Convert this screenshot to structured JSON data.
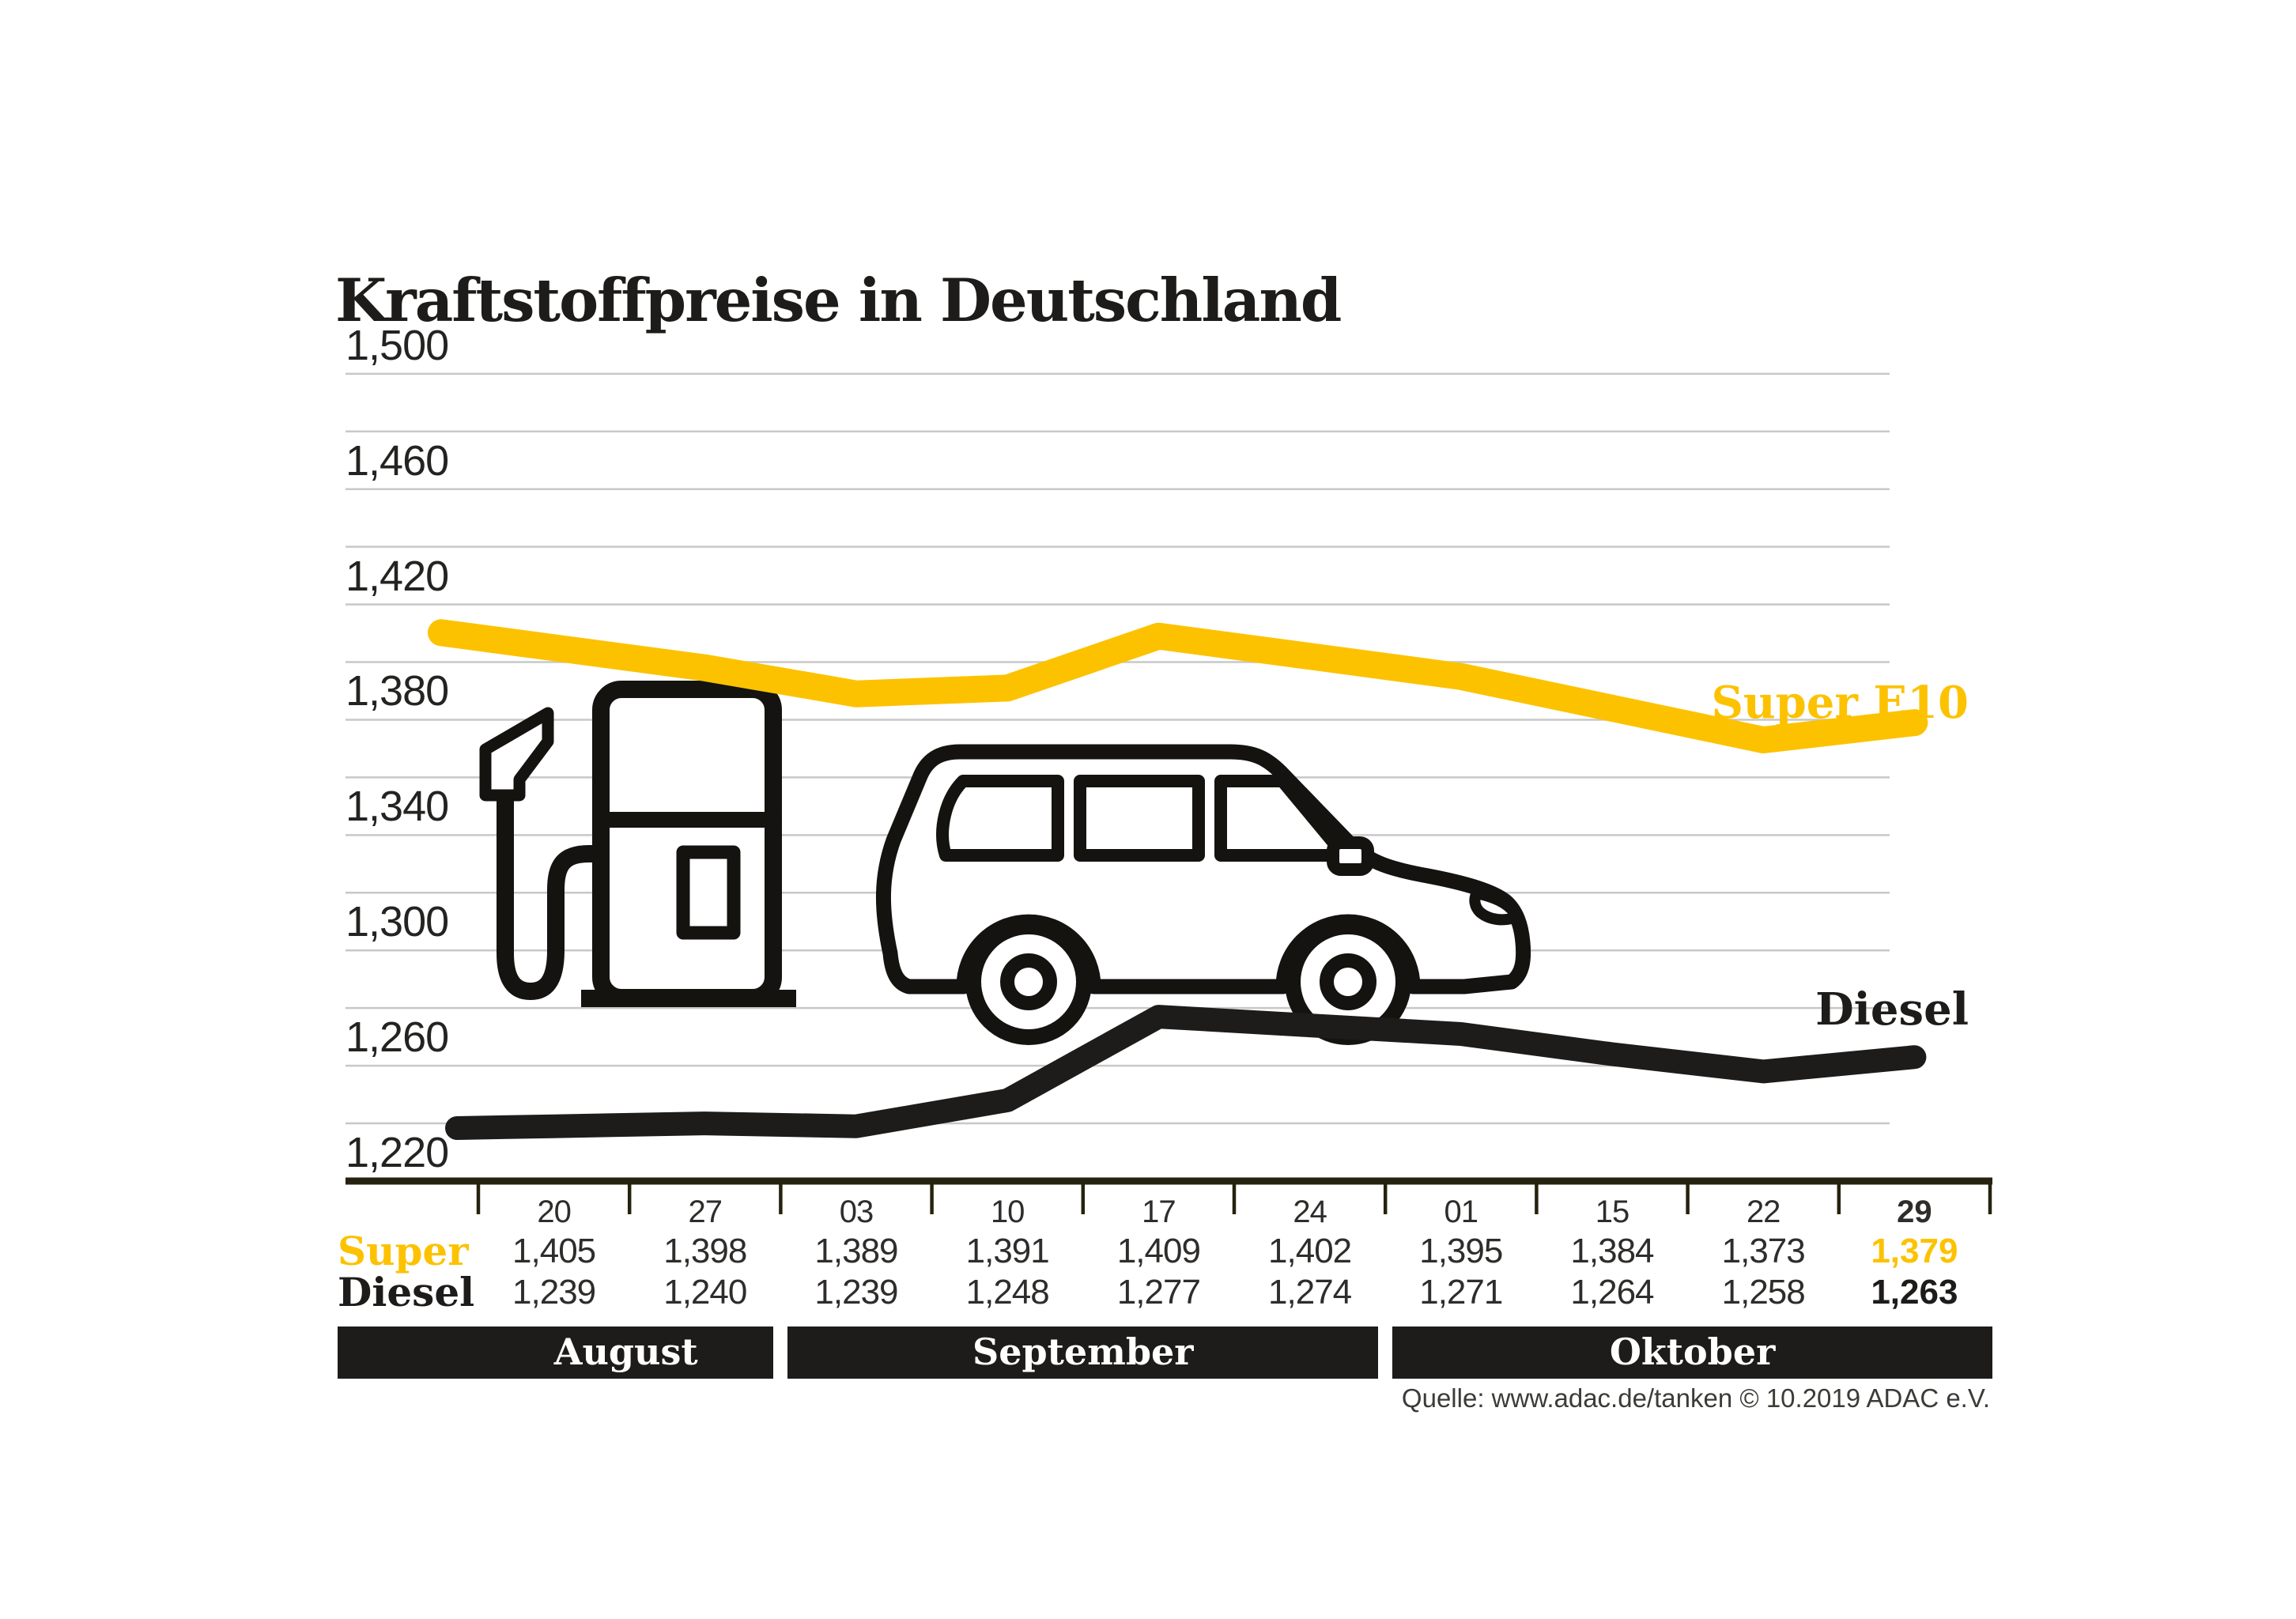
{
  "title": "Kraftstoffpreise in Deutschland",
  "chart_data": {
    "type": "line",
    "title": "Kraftstoffpreise in Deutschland",
    "categories": [
      "20",
      "27",
      "03",
      "10",
      "17",
      "24",
      "01",
      "15",
      "22",
      "29"
    ],
    "months": [
      {
        "label": "August",
        "span": 2
      },
      {
        "label": "September",
        "span": 4
      },
      {
        "label": "Oktober",
        "span": 4
      }
    ],
    "series": [
      {
        "name": "Super E10",
        "row_label": "Super",
        "color": "#FCC200",
        "values": [
          1.405,
          1.398,
          1.389,
          1.391,
          1.409,
          1.402,
          1.395,
          1.384,
          1.373,
          1.379
        ]
      },
      {
        "name": "Diesel",
        "row_label": "Diesel",
        "color": "#1d1c1a",
        "values": [
          1.239,
          1.24,
          1.239,
          1.248,
          1.277,
          1.274,
          1.271,
          1.264,
          1.258,
          1.263
        ]
      }
    ],
    "ylim": [
      1220,
      1500
    ],
    "y_tick_labels": [
      "1,500",
      "1,460",
      "1,420",
      "1,380",
      "1,340",
      "1,300",
      "1,260",
      "1,220"
    ],
    "y_tick_values": [
      1500,
      1460,
      1420,
      1380,
      1340,
      1300,
      1260,
      1220
    ],
    "y_minor_step": 20,
    "grid": true,
    "legend_position": "inline-right",
    "emphasize_last_column": true
  },
  "icons": {
    "pump": "fuel-pump-icon",
    "car": "car-icon"
  },
  "source": {
    "text": "Quelle: www.adac.de/tanken   © 10.2019  ADAC e.V."
  }
}
